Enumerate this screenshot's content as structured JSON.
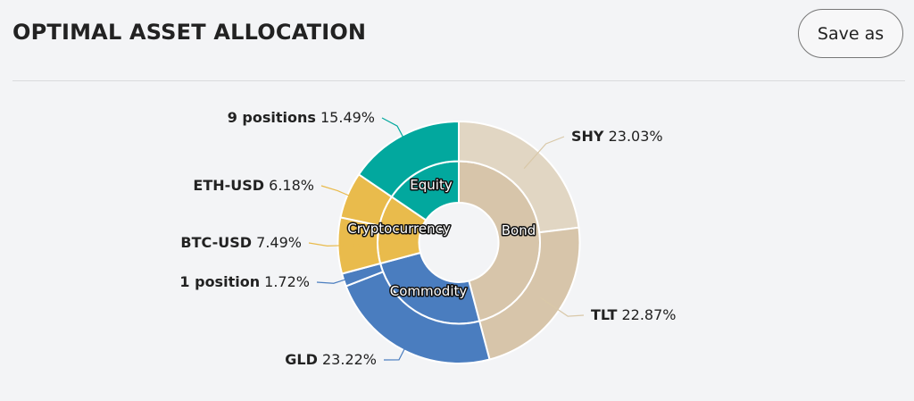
{
  "header": {
    "title": "OPTIMAL ASSET ALLOCATION",
    "save_label": "Save as"
  },
  "chart_data": {
    "type": "pie",
    "subtype": "sunburst-donut",
    "inner": [
      {
        "name": "Bond",
        "value": 45.9,
        "color": "#d7c5aa"
      },
      {
        "name": "Commodity",
        "value": 24.94,
        "color": "#4a7dbf"
      },
      {
        "name": "Cryptocurrency",
        "value": 13.67,
        "color": "#e9bb4c"
      },
      {
        "name": "Equity",
        "value": 15.49,
        "color": "#02a89e"
      }
    ],
    "outer": [
      {
        "name": "SHY",
        "pct": "23.03%",
        "value": 23.03,
        "parent": "Bond",
        "color": "#e1d6c3"
      },
      {
        "name": "TLT",
        "pct": "22.87%",
        "value": 22.87,
        "parent": "Bond",
        "color": "#d7c5aa"
      },
      {
        "name": "GLD",
        "pct": "23.22%",
        "value": 23.22,
        "parent": "Commodity",
        "color": "#4a7dbf"
      },
      {
        "name": "1 position",
        "pct": "1.72%",
        "value": 1.72,
        "parent": "Commodity",
        "color": "#4a7dbf"
      },
      {
        "name": "BTC-USD",
        "pct": "7.49%",
        "value": 7.49,
        "parent": "Cryptocurrency",
        "color": "#e9bb4c"
      },
      {
        "name": "ETH-USD",
        "pct": "6.18%",
        "value": 6.18,
        "parent": "Cryptocurrency",
        "color": "#e9bb4c"
      },
      {
        "name": "9 positions",
        "pct": "15.49%",
        "value": 15.49,
        "parent": "Equity",
        "color": "#02a89e"
      }
    ]
  }
}
